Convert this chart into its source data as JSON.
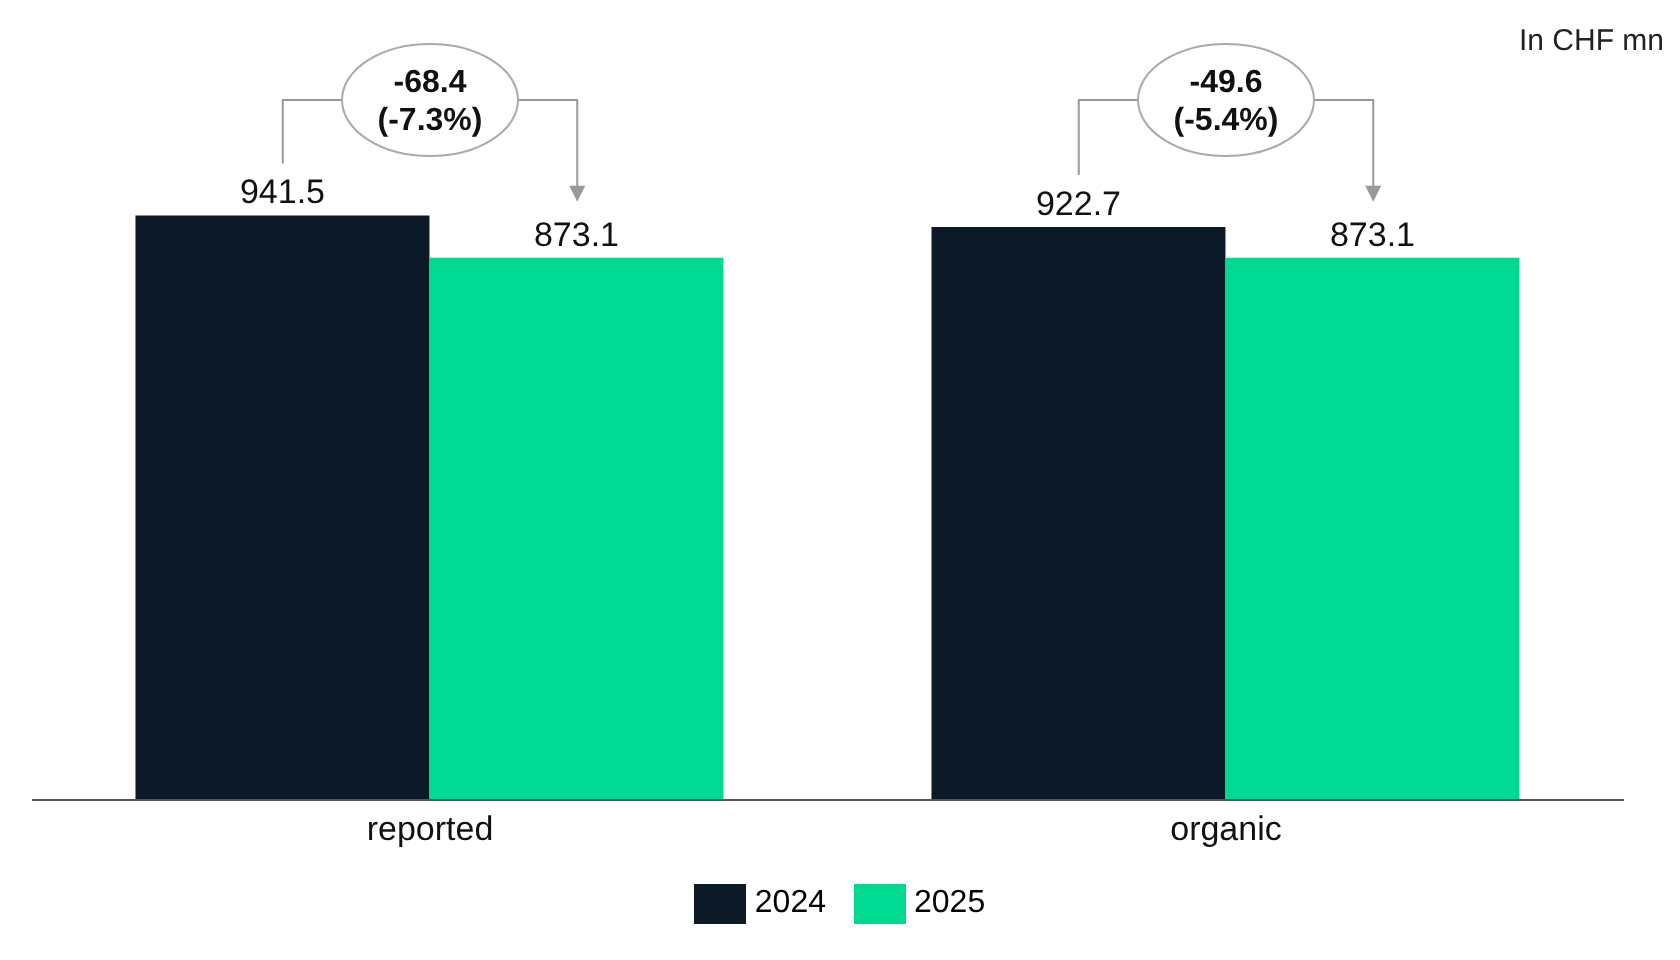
{
  "chart_data": {
    "type": "bar",
    "categories": [
      "reported",
      "organic"
    ],
    "series": [
      {
        "name": "2024",
        "color": "#0b1a26",
        "values": [
          941.5,
          922.7
        ]
      },
      {
        "name": "2025",
        "color": "#00d991",
        "values": [
          873.1,
          873.1
        ]
      }
    ],
    "data_labels": true,
    "legend": "bottom",
    "grid": false,
    "annotations": [
      "In CHF mn",
      "-68.4 (-7.3%)",
      "-49.6 (-5.4%)"
    ]
  }
}
